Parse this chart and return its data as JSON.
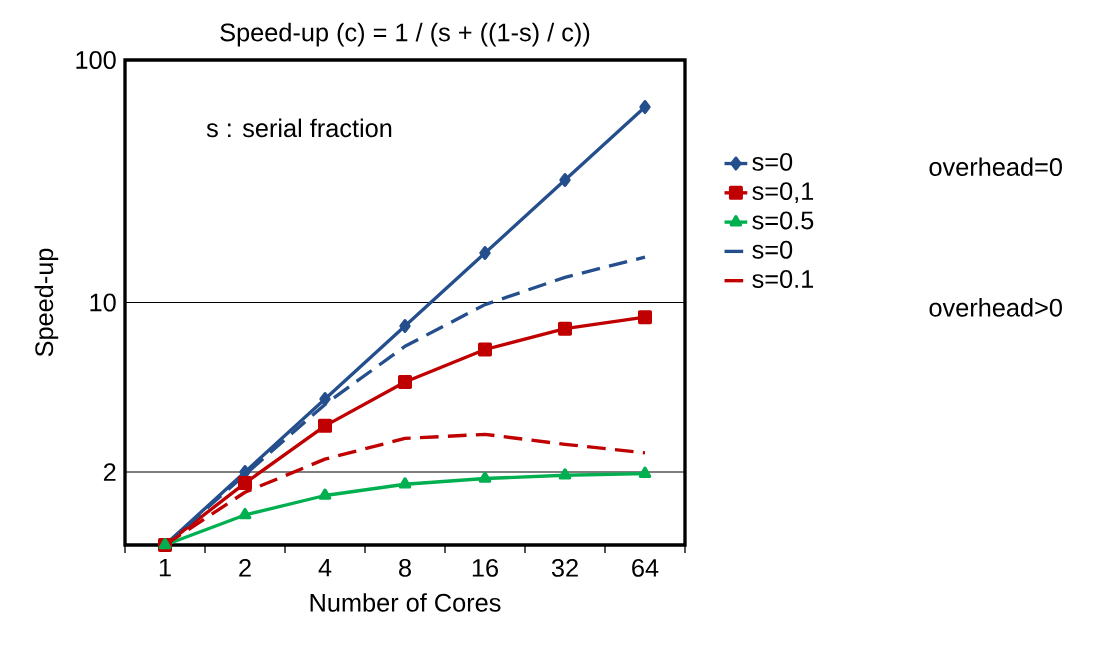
{
  "chart_data": {
    "type": "line",
    "title": "Speed-up (c) = 1 / (s + ((1-s) / c))",
    "xlabel": "Number of Cores",
    "ylabel": "Speed-up",
    "categories": [
      "1",
      "2",
      "4",
      "8",
      "16",
      "32",
      "64"
    ],
    "series": [
      {
        "name": "s=0",
        "color": "#254f8c",
        "values": [
          1,
          2,
          4,
          8,
          16,
          32,
          64
        ],
        "marker": "diamond",
        "line_style": "solid"
      },
      {
        "name": "s=0,1",
        "color": "#c00000",
        "values": [
          1,
          1.8,
          3.1,
          4.7,
          6.4,
          7.8,
          8.7
        ],
        "marker": "square",
        "line_style": "solid"
      },
      {
        "name": "s=0.5",
        "color": "#00b050",
        "values": [
          1,
          1.33,
          1.6,
          1.78,
          1.88,
          1.94,
          1.97
        ],
        "marker": "triangle",
        "line_style": "solid"
      },
      {
        "name": "s=0",
        "color": "#254f8c",
        "values": [
          1,
          1.95,
          3.8,
          6.6,
          9.8,
          12.7,
          15.4
        ],
        "marker": "none",
        "line_style": "dashed"
      },
      {
        "name": "s=0.1",
        "color": "#c00000",
        "values": [
          1,
          1.65,
          2.26,
          2.75,
          2.86,
          2.6,
          2.4
        ],
        "marker": "none",
        "line_style": "dashed"
      }
    ],
    "ylim": [
      1,
      100
    ],
    "yticks": [
      2,
      10,
      100
    ],
    "log": "y",
    "grid": "y",
    "legend": "right",
    "annotations": [
      "s : serial fraction",
      "overhead=0",
      "overhead>0"
    ]
  }
}
